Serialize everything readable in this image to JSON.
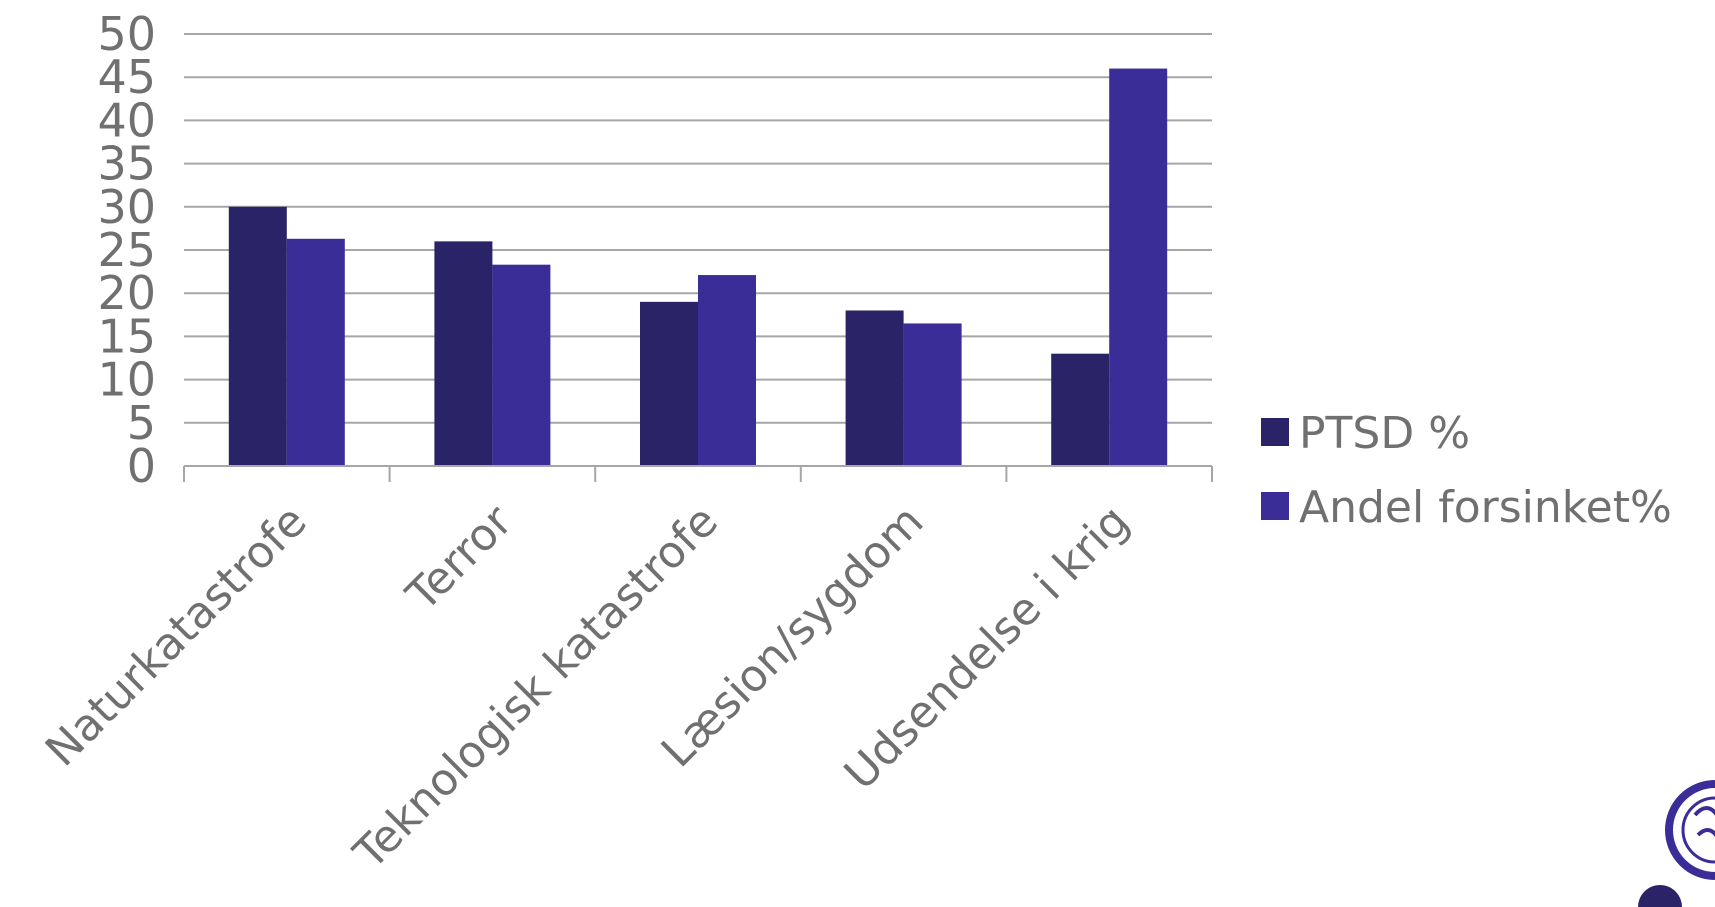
{
  "chart_data": {
    "type": "bar",
    "categories": [
      "Naturkatastrofe",
      "Terror",
      "Teknologisk katastrofe",
      "Læsion/sygdom",
      "Udsendelse i krig"
    ],
    "series": [
      {
        "name": "PTSD %",
        "values": [
          30,
          26,
          19,
          18,
          13
        ],
        "color": "#2b2368"
      },
      {
        "name": "Andel forsinket%",
        "values": [
          26.3,
          23.3,
          22.1,
          16.5,
          46
        ],
        "color": "#3a2d97"
      }
    ],
    "ylim": [
      0,
      50
    ],
    "yticks": [
      "0",
      "5",
      "10",
      "15",
      "20",
      "25",
      "30",
      "35",
      "40",
      "45",
      "50"
    ],
    "grid": true,
    "legend": "right",
    "title": "",
    "xlabel": "",
    "ylabel": ""
  },
  "colors": {
    "gridline": "#a6a6a6",
    "text": "#707070",
    "logo": "#3a2d97"
  }
}
